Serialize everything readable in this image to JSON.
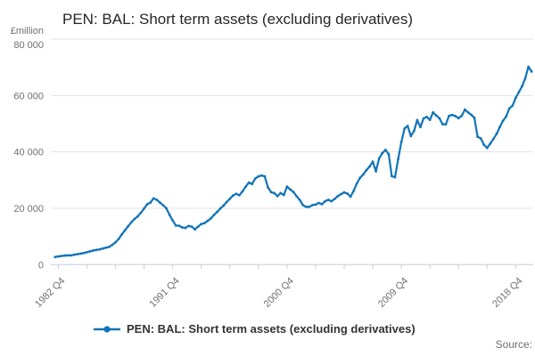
{
  "title": "PEN: BAL: Short term assets (excluding derivatives)",
  "y_axis": {
    "unit_label": "£million",
    "ticks": [
      {
        "label": "0",
        "value": 0
      },
      {
        "label": "20 000",
        "value": 20000
      },
      {
        "label": "40 000",
        "value": 40000
      },
      {
        "label": "60 000",
        "value": 60000
      },
      {
        "label": "80 000",
        "value": 80000
      }
    ]
  },
  "x_axis": {
    "minor_tick_every_quarters": 9,
    "labeled_ticks": [
      {
        "label": "1982 Q4",
        "index": 1
      },
      {
        "label": "1991 Q4",
        "index": 37
      },
      {
        "label": "2000 Q4",
        "index": 73
      },
      {
        "label": "2009 Q4",
        "index": 109
      },
      {
        "label": "2018 Q4",
        "index": 145
      }
    ]
  },
  "legend": {
    "label": "PEN: BAL: Short term assets (excluding derivatives)"
  },
  "source": {
    "label": "Source:"
  },
  "colors": {
    "line": "#1274b8",
    "grid": "#e3e3e3",
    "axis": "#c4cede",
    "text": "#707070",
    "title_text": "#262626"
  },
  "chart_data": {
    "type": "line",
    "title": "PEN: BAL: Short term assets (excluding derivatives)",
    "ylabel": "£million",
    "ylim": [
      0,
      80000
    ],
    "grid": true,
    "legend_position": "bottom",
    "frequency": "quarterly",
    "x_start": "1982 Q3",
    "x_end": "2020 Q1",
    "x_tick_labels": [
      "1982 Q4",
      "1991 Q4",
      "2000 Q4",
      "2009 Q4",
      "2018 Q4"
    ],
    "series_name": "PEN: BAL: Short term assets (excluding derivatives)",
    "values": [
      2700,
      2900,
      3050,
      3200,
      3300,
      3250,
      3500,
      3700,
      3900,
      4100,
      4400,
      4700,
      5000,
      5200,
      5400,
      5700,
      6000,
      6300,
      7000,
      7900,
      9100,
      10700,
      12200,
      13600,
      15000,
      16200,
      17100,
      18400,
      19900,
      21400,
      22000,
      23500,
      23000,
      22000,
      21100,
      20000,
      17700,
      15700,
      13900,
      13800,
      13200,
      13000,
      13700,
      13500,
      12500,
      13500,
      14400,
      14700,
      15500,
      16400,
      17600,
      18700,
      19900,
      20900,
      22200,
      23300,
      24500,
      25100,
      24600,
      26000,
      27700,
      29100,
      28600,
      30500,
      31300,
      31600,
      31300,
      27400,
      25700,
      25400,
      24300,
      25400,
      24700,
      27700,
      26700,
      25800,
      24300,
      23000,
      21100,
      20500,
      20500,
      21100,
      21300,
      21900,
      21400,
      22500,
      23000,
      22500,
      23300,
      24300,
      25000,
      25600,
      25200,
      24100,
      26200,
      28800,
      30800,
      32000,
      33500,
      34800,
      36500,
      33100,
      37700,
      39500,
      40700,
      39200,
      31400,
      31000,
      37500,
      43500,
      48300,
      49200,
      45600,
      47500,
      51300,
      48800,
      51900,
      52400,
      51400,
      54000,
      52900,
      51900,
      49800,
      49800,
      52800,
      53100,
      52700,
      52000,
      52800,
      55000,
      54000,
      53200,
      52100,
      45400,
      44800,
      42500,
      41400,
      43000,
      44600,
      46400,
      48800,
      51000,
      52600,
      55400,
      56400,
      59200,
      61200,
      63300,
      66000,
      70200,
      68500
    ]
  }
}
